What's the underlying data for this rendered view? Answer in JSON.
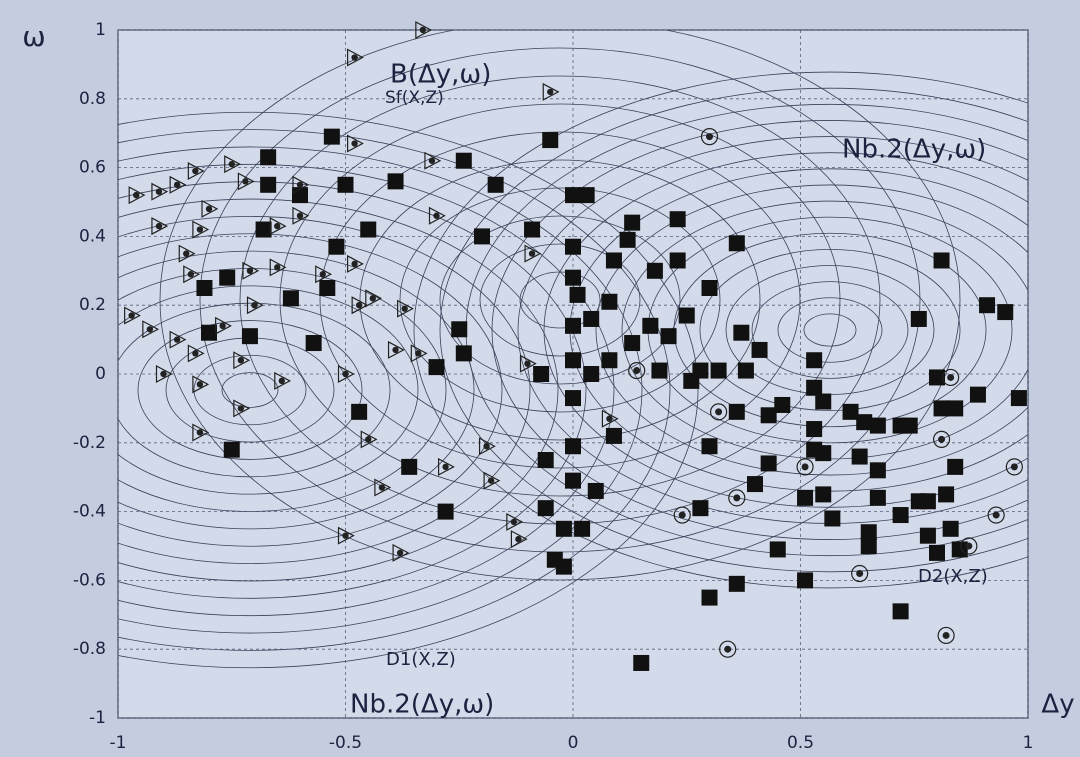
{
  "chart_data": {
    "type": "scatter",
    "x_label": "Δy",
    "y_label": "ω",
    "annotations": [
      "B(Δy,ω)",
      "Sf(X,Z)",
      "Nb.2(Δy,ω)",
      "Nb.2(Δy,ω)",
      "D1(X,Z)",
      "D2(X,Z)"
    ],
    "xlim": [
      -1,
      1
    ],
    "xticks": [
      -1,
      -0.5,
      0,
      0.5,
      1
    ],
    "ylim": [
      -1,
      1
    ],
    "yticks": [
      -1,
      -0.8,
      -0.6,
      -0.4,
      -0.2,
      0,
      0.2,
      0.4,
      0.6,
      0.8,
      1
    ],
    "grid": true,
    "series": [
      {
        "marker": "square",
        "color": "#111111",
        "x": [
          -0.53,
          -0.67,
          -0.05,
          -0.5,
          -0.39,
          -0.24,
          -0.17,
          0,
          0.03,
          -0.6,
          -0.67,
          -0.68,
          -0.45,
          -0.52,
          -0.2,
          -0.09,
          0.13,
          0.23,
          0.36,
          0.81,
          0,
          0.12,
          0.23,
          0.18,
          0.09,
          0,
          0.01,
          0.3,
          -0.81,
          -0.76,
          -0.62,
          -0.54,
          0.08,
          0.25,
          0.91,
          0.95,
          0.76,
          0,
          0.04,
          0.13,
          0.17,
          0.21,
          0.37,
          -0.8,
          -0.71,
          -0.57,
          -0.25,
          -0.24,
          -0.3,
          0,
          0.08,
          0.19,
          0.28,
          0.32,
          0.38,
          0.41,
          0.53,
          -0.07,
          0.04,
          0,
          0.26,
          0.53,
          0.8,
          0.98,
          0.89,
          0.36,
          0.46,
          0.43,
          0.55,
          0.61,
          0.64,
          0.67,
          0.72,
          0.74,
          0.81,
          0.84,
          -0.47,
          -0.75,
          0.53,
          0.53,
          0.55,
          0.09,
          0,
          0.3,
          0.63,
          0.67,
          0.43,
          -0.36,
          -0.06,
          0,
          0.05,
          0.4,
          0.84,
          0.67,
          0.55,
          0.51,
          0.28,
          -0.06,
          -0.28,
          0.72,
          0.76,
          0.78,
          0.82,
          -0.02,
          0.02,
          0.57,
          0.65,
          0.65,
          0.78,
          0.83,
          0.85,
          0.8,
          0.45,
          -0.04,
          -0.02,
          0.51,
          0.36,
          0.3,
          0.72,
          0.15
        ],
        "values": [
          0.69,
          0.63,
          0.68,
          0.55,
          0.56,
          0.62,
          0.55,
          0.52,
          0.52,
          0.52,
          0.55,
          0.42,
          0.42,
          0.37,
          0.4,
          0.42,
          0.44,
          0.45,
          0.38,
          0.33,
          0.37,
          0.39,
          0.33,
          0.3,
          0.33,
          0.28,
          0.23,
          0.25,
          0.25,
          0.28,
          0.22,
          0.25,
          0.21,
          0.17,
          0.2,
          0.18,
          0.16,
          0.14,
          0.16,
          0.09,
          0.14,
          0.11,
          0.12,
          0.12,
          0.11,
          0.09,
          0.13,
          0.06,
          0.02,
          0.04,
          0.04,
          0.01,
          0.01,
          0.01,
          0.01,
          0.07,
          0.04,
          0,
          0,
          -0.07,
          -0.02,
          -0.04,
          -0.01,
          -0.07,
          -0.06,
          -0.11,
          -0.09,
          -0.12,
          -0.08,
          -0.11,
          -0.14,
          -0.15,
          -0.15,
          -0.15,
          -0.1,
          -0.1,
          -0.11,
          -0.22,
          -0.16,
          -0.22,
          -0.23,
          -0.18,
          -0.21,
          -0.21,
          -0.24,
          -0.28,
          -0.26,
          -0.27,
          -0.25,
          -0.31,
          -0.34,
          -0.32,
          -0.27,
          -0.36,
          -0.35,
          -0.36,
          -0.39,
          -0.39,
          -0.4,
          -0.41,
          -0.37,
          -0.37,
          -0.35,
          -0.45,
          -0.45,
          -0.42,
          -0.46,
          -0.5,
          -0.47,
          -0.45,
          -0.51,
          -0.52,
          -0.51,
          -0.54,
          -0.56,
          -0.6,
          -0.61,
          -0.65,
          -0.69,
          -0.84
        ]
      },
      {
        "marker": "triangle",
        "color": "#222222",
        "x": [
          -0.33,
          -0.48,
          -0.05,
          -0.48,
          -0.96,
          -0.91,
          -0.87,
          -0.83,
          -0.75,
          -0.72,
          -0.6,
          -0.31,
          -0.91,
          -0.8,
          -0.82,
          -0.6,
          -0.3,
          -0.65,
          -0.85,
          -0.84,
          -0.71,
          -0.65,
          -0.55,
          -0.48,
          -0.09,
          -0.97,
          -0.93,
          -0.87,
          -0.83,
          -0.77,
          -0.7,
          -0.47,
          -0.44,
          -0.37,
          -0.39,
          -0.34,
          -0.73,
          -0.9,
          -0.82,
          -0.64,
          -0.5,
          -0.1,
          -0.73,
          -0.82,
          -0.45,
          -0.19,
          -0.28,
          -0.18,
          -0.42,
          -0.5,
          -0.38,
          -0.13,
          -0.12,
          0.08
        ],
        "values": [
          1,
          0.92,
          0.82,
          0.67,
          0.52,
          0.53,
          0.55,
          0.59,
          0.61,
          0.56,
          0.55,
          0.62,
          0.43,
          0.48,
          0.42,
          0.46,
          0.46,
          0.43,
          0.35,
          0.29,
          0.3,
          0.31,
          0.29,
          0.32,
          0.35,
          0.17,
          0.13,
          0.1,
          0.06,
          0.14,
          0.2,
          0.2,
          0.22,
          0.19,
          0.07,
          0.06,
          0.04,
          0,
          -0.03,
          -0.02,
          0,
          0.03,
          -0.1,
          -0.17,
          -0.19,
          -0.21,
          -0.27,
          -0.31,
          -0.33,
          -0.47,
          -0.52,
          -0.43,
          -0.48,
          -0.13
        ]
      },
      {
        "marker": "circle",
        "color": "#222222",
        "x": [
          0.3,
          0.14,
          0.83,
          0.32,
          0.81,
          0.97,
          0.51,
          0.36,
          0.24,
          0.93,
          0.63,
          0.87,
          0.34,
          0.82
        ],
        "values": [
          0.69,
          0.01,
          -0.01,
          -0.11,
          -0.19,
          -0.27,
          -0.27,
          -0.36,
          -0.41,
          -0.41,
          -0.58,
          -0.5,
          -0.8,
          -0.76
        ]
      }
    ]
  }
}
